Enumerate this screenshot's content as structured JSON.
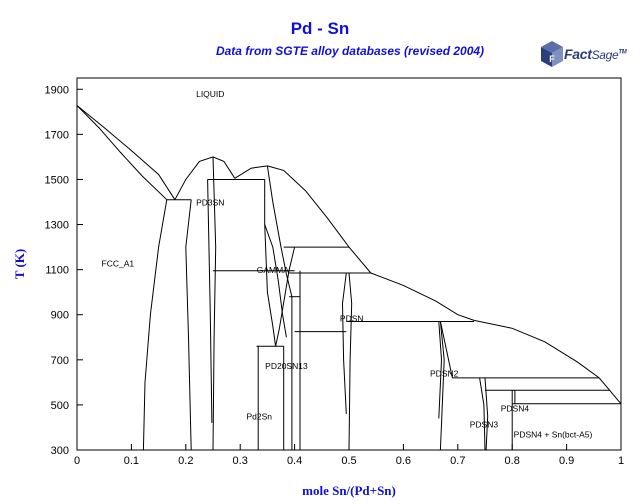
{
  "header": {
    "title": "Pd - Sn",
    "subtitle": "Data from SGTE alloy databases (revised 2004)"
  },
  "logo": {
    "name": "factsage-logo",
    "text_bold": "Fact",
    "text_regular": "Sage",
    "mark": "TM"
  },
  "chart_data": {
    "type": "phase-diagram",
    "title": "Pd - Sn",
    "subtitle": "Data from SGTE alloy databases (revised 2004)",
    "xlabel": "mole Sn/(Pd+Sn)",
    "ylabel": "T (K)",
    "xlim": [
      0,
      1
    ],
    "ylim": [
      300,
      1950
    ],
    "x_ticks": [
      0,
      0.1,
      0.2,
      0.3,
      0.4,
      0.5,
      0.6,
      0.7,
      0.8,
      0.9,
      1
    ],
    "x_tick_labels": [
      "0",
      "0.1",
      "0.2",
      "0.3",
      "0.4",
      "0.5",
      "0.6",
      "0.7",
      "0.8",
      "0.9",
      "1"
    ],
    "y_ticks": [
      300,
      500,
      700,
      900,
      1100,
      1300,
      1500,
      1700,
      1900
    ],
    "y_tick_labels": [
      "300",
      "500",
      "700",
      "900",
      "1100",
      "1300",
      "1500",
      "1700",
      "1900"
    ],
    "grid": false,
    "line_color": "#000000",
    "region_labels": [
      {
        "text": "LIQUID",
        "x": 0.245,
        "y": 1865
      },
      {
        "text": "PD3SN",
        "x": 0.245,
        "y": 1385
      },
      {
        "text": "FCC_A1",
        "x": 0.075,
        "y": 1115
      },
      {
        "text": "GAMMA",
        "x": 0.36,
        "y": 1085
      },
      {
        "text": "PDSN",
        "x": 0.505,
        "y": 870
      },
      {
        "text": "PD20SN13",
        "x": 0.385,
        "y": 660
      },
      {
        "text": "PDSN2",
        "x": 0.675,
        "y": 625
      },
      {
        "text": "Pd2Sn",
        "x": 0.335,
        "y": 435
      },
      {
        "text": "PDSN3",
        "x": 0.748,
        "y": 400
      },
      {
        "text": "PDSN4",
        "x": 0.805,
        "y": 470
      },
      {
        "text": "PDSN4 + Sn(bct-A5)",
        "x": 0.875,
        "y": 355
      }
    ],
    "curves": [
      {
        "name": "liquidus-fcc-upper",
        "points": [
          [
            0,
            1828
          ],
          [
            0.05,
            1730
          ],
          [
            0.1,
            1628
          ],
          [
            0.15,
            1522
          ],
          [
            0.18,
            1410
          ]
        ]
      },
      {
        "name": "solidus-fcc",
        "points": [
          [
            0,
            1828
          ],
          [
            0.04,
            1730
          ],
          [
            0.08,
            1620
          ],
          [
            0.12,
            1515
          ],
          [
            0.165,
            1410
          ]
        ]
      },
      {
        "name": "fcc-solvus",
        "points": [
          [
            0.165,
            1410
          ],
          [
            0.15,
            1200
          ],
          [
            0.135,
            900
          ],
          [
            0.125,
            600
          ],
          [
            0.122,
            300
          ]
        ]
      },
      {
        "name": "eutectic-1",
        "points": [
          [
            0.165,
            1410
          ],
          [
            0.21,
            1410
          ]
        ]
      },
      {
        "name": "liquidus-pd3sn",
        "points": [
          [
            0.18,
            1410
          ],
          [
            0.2,
            1500
          ],
          [
            0.225,
            1580
          ],
          [
            0.25,
            1600
          ],
          [
            0.27,
            1580
          ],
          [
            0.29,
            1505
          ]
        ]
      },
      {
        "name": "pd3sn-left",
        "points": [
          [
            0.21,
            1410
          ],
          [
            0.2,
            1200
          ],
          [
            0.205,
            800
          ],
          [
            0.21,
            300
          ]
        ]
      },
      {
        "name": "pd3sn-left-inner",
        "points": [
          [
            0.24,
            1500
          ],
          [
            0.245,
            900
          ],
          [
            0.248,
            420
          ]
        ]
      },
      {
        "name": "pd3sn-right",
        "points": [
          [
            0.25,
            1600
          ],
          [
            0.255,
            1200
          ],
          [
            0.252,
            800
          ],
          [
            0.25,
            300
          ]
        ]
      },
      {
        "name": "eutectic-2",
        "points": [
          [
            0.24,
            1500
          ],
          [
            0.345,
            1500
          ]
        ]
      },
      {
        "name": "liquidus-gamma-left",
        "points": [
          [
            0.29,
            1505
          ],
          [
            0.32,
            1550
          ],
          [
            0.35,
            1560
          ]
        ]
      },
      {
        "name": "liquidus-gamma",
        "points": [
          [
            0.35,
            1560
          ],
          [
            0.38,
            1540
          ],
          [
            0.42,
            1450
          ],
          [
            0.46,
            1330
          ],
          [
            0.5,
            1200
          ],
          [
            0.54,
            1085
          ]
        ]
      },
      {
        "name": "liquidus-pdsn",
        "points": [
          [
            0.54,
            1085
          ],
          [
            0.6,
            1030
          ],
          [
            0.66,
            960
          ],
          [
            0.7,
            900
          ],
          [
            0.73,
            875
          ]
        ]
      },
      {
        "name": "liquidus-pdsn2",
        "points": [
          [
            0.73,
            875
          ],
          [
            0.8,
            840
          ],
          [
            0.86,
            780
          ],
          [
            0.92,
            690
          ],
          [
            0.96,
            620
          ],
          [
            1.0,
            505
          ]
        ]
      },
      {
        "name": "gamma-left",
        "points": [
          [
            0.345,
            1500
          ],
          [
            0.345,
            1300
          ],
          [
            0.35,
            1000
          ],
          [
            0.36,
            850
          ],
          [
            0.365,
            760
          ],
          [
            0.372,
            840
          ],
          [
            0.39,
            1100
          ],
          [
            0.4,
            1200
          ]
        ]
      },
      {
        "name": "gamma-right",
        "points": [
          [
            0.35,
            1560
          ],
          [
            0.36,
            1400
          ],
          [
            0.375,
            1200
          ],
          [
            0.385,
            1080
          ],
          [
            0.395,
            980
          ]
        ]
      },
      {
        "name": "gamma-lower",
        "points": [
          [
            0.345,
            1300
          ],
          [
            0.36,
            1200
          ],
          [
            0.37,
            1050
          ],
          [
            0.378,
            900
          ],
          [
            0.385,
            800
          ]
        ]
      },
      {
        "name": "tie-1200",
        "points": [
          [
            0.38,
            1200
          ],
          [
            0.5,
            1200
          ]
        ]
      },
      {
        "name": "tie-1100",
        "points": [
          [
            0.25,
            1095
          ],
          [
            0.4,
            1095
          ]
        ]
      },
      {
        "name": "tie-1085",
        "points": [
          [
            0.39,
            1085
          ],
          [
            0.54,
            1085
          ]
        ]
      },
      {
        "name": "tie-980",
        "points": [
          [
            0.39,
            980
          ],
          [
            0.41,
            980
          ]
        ]
      },
      {
        "name": "tie-870",
        "points": [
          [
            0.495,
            870
          ],
          [
            0.73,
            870
          ]
        ]
      },
      {
        "name": "tie-825",
        "points": [
          [
            0.4,
            825
          ],
          [
            0.495,
            825
          ]
        ]
      },
      {
        "name": "tie-760",
        "points": [
          [
            0.33,
            760
          ],
          [
            0.38,
            760
          ]
        ]
      },
      {
        "name": "tie-620",
        "points": [
          [
            0.69,
            620
          ],
          [
            0.96,
            620
          ]
        ]
      },
      {
        "name": "tie-565",
        "points": [
          [
            0.75,
            565
          ],
          [
            0.98,
            565
          ]
        ]
      },
      {
        "name": "tie-505",
        "points": [
          [
            0.8,
            505
          ],
          [
            1.0,
            505
          ]
        ]
      },
      {
        "name": "pd2sn-left",
        "points": [
          [
            0.333,
            760
          ],
          [
            0.333,
            300
          ]
        ]
      },
      {
        "name": "pd20sn13-left",
        "points": [
          [
            0.38,
            760
          ],
          [
            0.38,
            300
          ]
        ]
      },
      {
        "name": "pd20sn13-right",
        "points": [
          [
            0.395,
            980
          ],
          [
            0.395,
            300
          ]
        ]
      },
      {
        "name": "gamma-eutectoid",
        "points": [
          [
            0.41,
            1095
          ],
          [
            0.41,
            300
          ]
        ]
      },
      {
        "name": "pdsn-left",
        "points": [
          [
            0.495,
            1085
          ],
          [
            0.488,
            950
          ],
          [
            0.49,
            700
          ],
          [
            0.495,
            460
          ]
        ]
      },
      {
        "name": "pdsn-right",
        "points": [
          [
            0.5,
            1085
          ],
          [
            0.505,
            950
          ],
          [
            0.502,
            700
          ],
          [
            0.5,
            300
          ]
        ]
      },
      {
        "name": "pdsn2-left",
        "points": [
          [
            0.665,
            870
          ],
          [
            0.67,
            700
          ],
          [
            0.665,
            440
          ]
        ]
      },
      {
        "name": "pdsn2-right",
        "points": [
          [
            0.668,
            870
          ],
          [
            0.675,
            700
          ],
          [
            0.668,
            300
          ]
        ]
      },
      {
        "name": "pdsn2-liq",
        "points": [
          [
            0.668,
            870
          ],
          [
            0.69,
            620
          ]
        ]
      },
      {
        "name": "pdsn3-left",
        "points": [
          [
            0.74,
            620
          ],
          [
            0.748,
            500
          ],
          [
            0.75,
            300
          ]
        ]
      },
      {
        "name": "pdsn3-right",
        "points": [
          [
            0.75,
            620
          ],
          [
            0.755,
            450
          ],
          [
            0.752,
            300
          ]
        ]
      },
      {
        "name": "pdsn4-left",
        "points": [
          [
            0.8,
            565
          ],
          [
            0.8,
            300
          ]
        ]
      },
      {
        "name": "pdsn4-right",
        "points": [
          [
            0.805,
            565
          ],
          [
            0.805,
            505
          ]
        ]
      },
      {
        "name": "sn-side",
        "points": [
          [
            1.0,
            505
          ],
          [
            1.0,
            300
          ]
        ]
      }
    ]
  }
}
